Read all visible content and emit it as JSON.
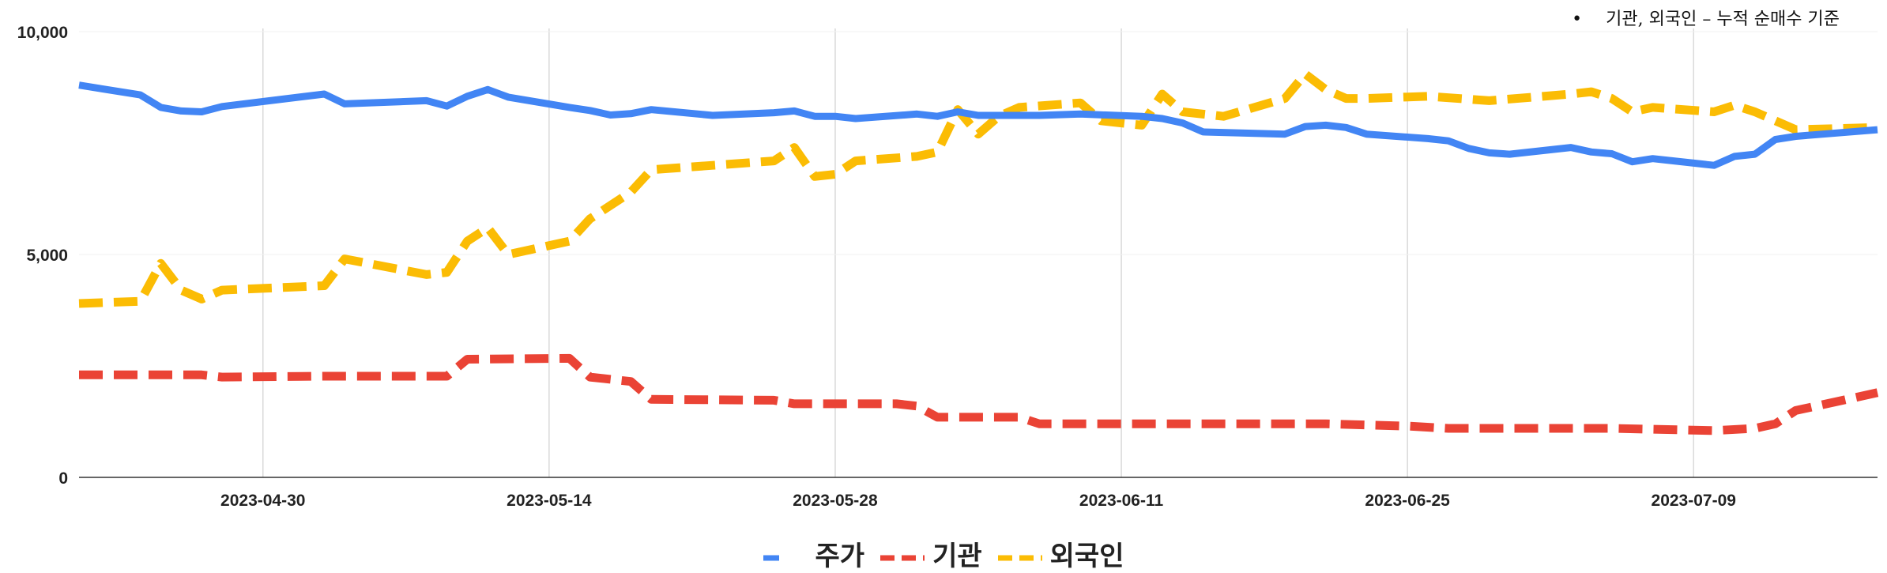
{
  "note": "기관, 외국인 – 누적 순매수 기준",
  "chart_data": {
    "type": "line",
    "ylim": [
      0,
      10000
    ],
    "y_ticks": [
      0,
      5000,
      10000
    ],
    "y_tick_labels": [
      "0",
      "5,000",
      "10,000"
    ],
    "x_ticks": [
      "2023-04-30",
      "2023-05-14",
      "2023-05-28",
      "2023-06-11",
      "2023-06-25",
      "2023-07-09"
    ],
    "x_range": [
      "2023-04-21",
      "2023-07-18"
    ],
    "grid": "vertical lines at x ticks",
    "legend_position": "bottom-center",
    "series": [
      {
        "name": "주가",
        "color": "#4285f4",
        "style": "solid",
        "points": [
          [
            "2023-04-21",
            8800
          ],
          [
            "2023-04-24",
            8580
          ],
          [
            "2023-04-25",
            8300
          ],
          [
            "2023-04-26",
            8220
          ],
          [
            "2023-04-27",
            8200
          ],
          [
            "2023-04-28",
            8320
          ],
          [
            "2023-05-03",
            8600
          ],
          [
            "2023-05-04",
            8380
          ],
          [
            "2023-05-08",
            8450
          ],
          [
            "2023-05-09",
            8330
          ],
          [
            "2023-05-10",
            8550
          ],
          [
            "2023-05-11",
            8700
          ],
          [
            "2023-05-12",
            8530
          ],
          [
            "2023-05-15",
            8300
          ],
          [
            "2023-05-16",
            8230
          ],
          [
            "2023-05-17",
            8130
          ],
          [
            "2023-05-18",
            8160
          ],
          [
            "2023-05-19",
            8250
          ],
          [
            "2023-05-22",
            8120
          ],
          [
            "2023-05-25",
            8180
          ],
          [
            "2023-05-26",
            8220
          ],
          [
            "2023-05-27",
            8100
          ],
          [
            "2023-05-28",
            8100
          ],
          [
            "2023-05-29",
            8050
          ],
          [
            "2023-06-01",
            8150
          ],
          [
            "2023-06-02",
            8100
          ],
          [
            "2023-06-03",
            8200
          ],
          [
            "2023-06-04",
            8120
          ],
          [
            "2023-06-07",
            8120
          ],
          [
            "2023-06-09",
            8150
          ],
          [
            "2023-06-12",
            8100
          ],
          [
            "2023-06-13",
            8050
          ],
          [
            "2023-06-14",
            7950
          ],
          [
            "2023-06-15",
            7750
          ],
          [
            "2023-06-19",
            7700
          ],
          [
            "2023-06-20",
            7870
          ],
          [
            "2023-06-21",
            7900
          ],
          [
            "2023-06-22",
            7850
          ],
          [
            "2023-06-23",
            7700
          ],
          [
            "2023-06-26",
            7600
          ],
          [
            "2023-06-27",
            7550
          ],
          [
            "2023-06-28",
            7380
          ],
          [
            "2023-06-29",
            7280
          ],
          [
            "2023-06-30",
            7250
          ],
          [
            "2023-07-03",
            7400
          ],
          [
            "2023-07-04",
            7300
          ],
          [
            "2023-07-05",
            7260
          ],
          [
            "2023-07-06",
            7080
          ],
          [
            "2023-07-07",
            7150
          ],
          [
            "2023-07-10",
            7000
          ],
          [
            "2023-07-11",
            7200
          ],
          [
            "2023-07-12",
            7250
          ],
          [
            "2023-07-13",
            7580
          ],
          [
            "2023-07-14",
            7650
          ],
          [
            "2023-07-18",
            7800
          ]
        ]
      },
      {
        "name": "기관",
        "color": "#ea4335",
        "style": "dashed",
        "points": [
          [
            "2023-04-21",
            2300
          ],
          [
            "2023-04-25",
            2300
          ],
          [
            "2023-04-27",
            2300
          ],
          [
            "2023-04-28",
            2250
          ],
          [
            "2023-05-03",
            2270
          ],
          [
            "2023-05-09",
            2270
          ],
          [
            "2023-05-10",
            2650
          ],
          [
            "2023-05-15",
            2670
          ],
          [
            "2023-05-16",
            2250
          ],
          [
            "2023-05-18",
            2150
          ],
          [
            "2023-05-19",
            1750
          ],
          [
            "2023-05-25",
            1730
          ],
          [
            "2023-05-26",
            1650
          ],
          [
            "2023-05-27",
            1650
          ],
          [
            "2023-05-31",
            1650
          ],
          [
            "2023-06-01",
            1600
          ],
          [
            "2023-06-02",
            1350
          ],
          [
            "2023-06-05",
            1350
          ],
          [
            "2023-06-06",
            1350
          ],
          [
            "2023-06-07",
            1200
          ],
          [
            "2023-06-09",
            1200
          ],
          [
            "2023-06-19",
            1200
          ],
          [
            "2023-06-21",
            1200
          ],
          [
            "2023-06-25",
            1150
          ],
          [
            "2023-06-27",
            1100
          ],
          [
            "2023-07-04",
            1100
          ],
          [
            "2023-07-05",
            1100
          ],
          [
            "2023-07-10",
            1050
          ],
          [
            "2023-07-12",
            1100
          ],
          [
            "2023-07-13",
            1200
          ],
          [
            "2023-07-14",
            1500
          ],
          [
            "2023-07-18",
            1900
          ]
        ]
      },
      {
        "name": "외국인",
        "color": "#fbbc04",
        "style": "dashed",
        "points": [
          [
            "2023-04-21",
            3900
          ],
          [
            "2023-04-24",
            3950
          ],
          [
            "2023-04-25",
            4800
          ],
          [
            "2023-04-26",
            4200
          ],
          [
            "2023-04-27",
            4000
          ],
          [
            "2023-04-28",
            4200
          ],
          [
            "2023-05-03",
            4300
          ],
          [
            "2023-05-04",
            4900
          ],
          [
            "2023-05-08",
            4550
          ],
          [
            "2023-05-09",
            4600
          ],
          [
            "2023-05-10",
            5300
          ],
          [
            "2023-05-11",
            5600
          ],
          [
            "2023-05-12",
            5000
          ],
          [
            "2023-05-15",
            5300
          ],
          [
            "2023-05-16",
            5800
          ],
          [
            "2023-05-18",
            6400
          ],
          [
            "2023-05-19",
            6900
          ],
          [
            "2023-05-22",
            7000
          ],
          [
            "2023-05-25",
            7100
          ],
          [
            "2023-05-26",
            7400
          ],
          [
            "2023-05-27",
            6750
          ],
          [
            "2023-05-28",
            6800
          ],
          [
            "2023-05-29",
            7100
          ],
          [
            "2023-06-01",
            7200
          ],
          [
            "2023-06-02",
            7300
          ],
          [
            "2023-06-03",
            8250
          ],
          [
            "2023-06-04",
            7700
          ],
          [
            "2023-06-05",
            8100
          ],
          [
            "2023-06-06",
            8300
          ],
          [
            "2023-06-09",
            8400
          ],
          [
            "2023-06-10",
            8000
          ],
          [
            "2023-06-12",
            7900
          ],
          [
            "2023-06-13",
            8600
          ],
          [
            "2023-06-14",
            8200
          ],
          [
            "2023-06-16",
            8100
          ],
          [
            "2023-06-19",
            8500
          ],
          [
            "2023-06-20",
            9050
          ],
          [
            "2023-06-21",
            8700
          ],
          [
            "2023-06-22",
            8500
          ],
          [
            "2023-06-23",
            8500
          ],
          [
            "2023-06-26",
            8550
          ],
          [
            "2023-06-29",
            8450
          ],
          [
            "2023-07-03",
            8600
          ],
          [
            "2023-07-04",
            8650
          ],
          [
            "2023-07-05",
            8500
          ],
          [
            "2023-07-06",
            8200
          ],
          [
            "2023-07-07",
            8300
          ],
          [
            "2023-07-10",
            8200
          ],
          [
            "2023-07-11",
            8350
          ],
          [
            "2023-07-12",
            8200
          ],
          [
            "2023-07-13",
            8000
          ],
          [
            "2023-07-14",
            7800
          ],
          [
            "2023-07-18",
            7850
          ]
        ]
      }
    ]
  }
}
